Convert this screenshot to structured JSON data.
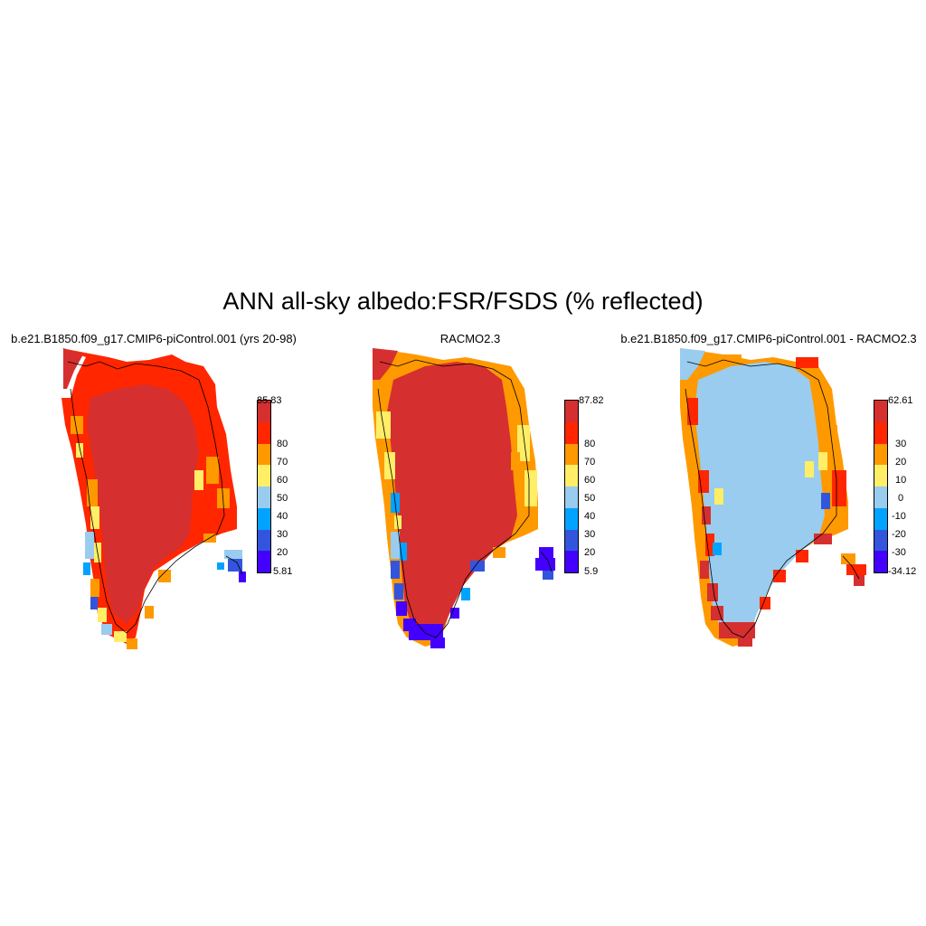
{
  "title": "ANN all-sky albedo:FSR/FSDS (% reflected)",
  "panels": [
    {
      "title": "b.e21.B1850.f09_g17.CMIP6-piControl.001 (yrs 20-98)",
      "colorbar": {
        "labels": [
          "85.83",
          "80",
          "70",
          "60",
          "50",
          "40",
          "30",
          "20",
          "5.81"
        ]
      }
    },
    {
      "title": "RACMO2.3",
      "colorbar": {
        "labels": [
          "87.82",
          "80",
          "70",
          "60",
          "50",
          "40",
          "30",
          "20",
          "5.9"
        ]
      }
    },
    {
      "title": "b.e21.B1850.f09_g17.CMIP6-piControl.001 - RACMO2.3",
      "colorbar": {
        "labels": [
          "62.61",
          "30",
          "20",
          "10",
          "0",
          "-10",
          "-20",
          "-30",
          "-34.12"
        ]
      }
    }
  ],
  "colors": {
    "levels_top_to_bottom": [
      "#d62f2f",
      "#ff2600",
      "#ff9900",
      "#ffee66",
      "#99ccee",
      "#00a3ff",
      "#3355dd",
      "#4400ff"
    ]
  }
}
